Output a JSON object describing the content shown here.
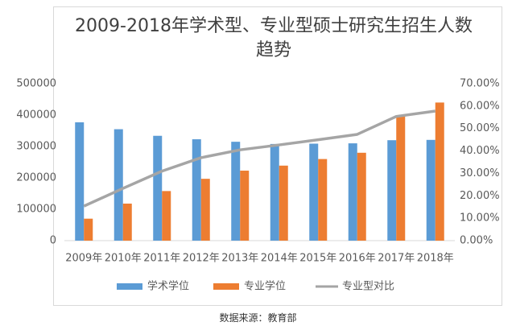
{
  "chart_data": {
    "type": "bar-line",
    "title": "2009-2018年学术型、专业型硕士研究生招生人数趋势",
    "source": "数据来源：教育部",
    "categories": [
      "2009年",
      "2010年",
      "2011年",
      "2012年",
      "2013年",
      "2014年",
      "2015年",
      "2016年",
      "2017年",
      "2018年"
    ],
    "series": [
      {
        "name": "学术学位",
        "type": "bar",
        "color": "#5b9bd5",
        "values": [
          377000,
          355000,
          334000,
          323000,
          315000,
          308000,
          309000,
          310000,
          320000,
          321000
        ]
      },
      {
        "name": "专业学位",
        "type": "bar",
        "color": "#ed7d31",
        "values": [
          70000,
          118000,
          158000,
          197000,
          223000,
          239000,
          260000,
          280000,
          398000,
          440000
        ]
      },
      {
        "name": "专业型对比",
        "type": "line",
        "axis": "y2",
        "color": "#a5a5a5",
        "values": [
          15.4,
          23.3,
          31.0,
          37.0,
          40.5,
          42.7,
          45.0,
          47.4,
          55.4,
          57.8
        ]
      }
    ],
    "ylim": [
      0,
      500000
    ],
    "yticks": [
      0,
      100000,
      200000,
      300000,
      400000,
      500000
    ],
    "y2lim": [
      0,
      70
    ],
    "y2ticks": [
      {
        "value": 0,
        "label": "0.00%"
      },
      {
        "value": 10,
        "label": "10.00%"
      },
      {
        "value": 20,
        "label": "20.00%"
      },
      {
        "value": 30,
        "label": "30.00%"
      },
      {
        "value": 40,
        "label": "40.00%"
      },
      {
        "value": 50,
        "label": "50.00%"
      },
      {
        "value": 60,
        "label": "60.00%"
      },
      {
        "value": 70,
        "label": "70.00%"
      }
    ],
    "grid": false
  }
}
